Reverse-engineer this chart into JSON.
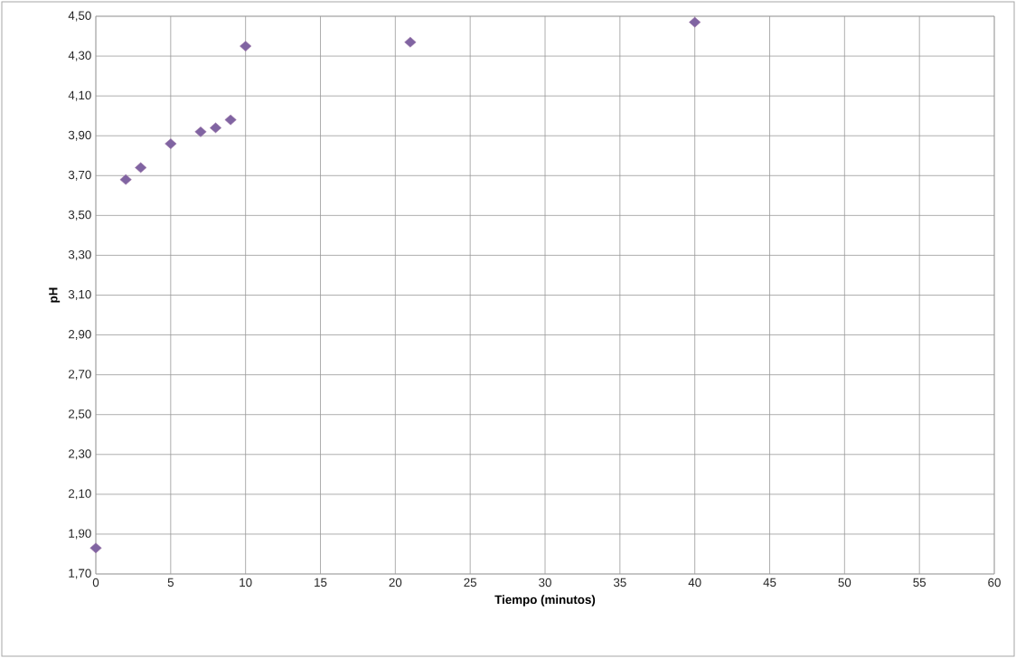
{
  "chart_data": {
    "type": "scatter",
    "xlabel": "Tiempo (minutos)",
    "ylabel": "pH",
    "x": [
      0,
      2,
      3,
      5,
      7,
      8,
      9,
      10,
      21,
      40
    ],
    "values": [
      1.83,
      3.68,
      3.74,
      3.86,
      3.92,
      3.94,
      3.98,
      4.35,
      4.37,
      4.47
    ],
    "color": "#8064a2",
    "marker": "diamond",
    "grid": true,
    "xlim": [
      0,
      60
    ],
    "xticks": [
      0,
      5,
      10,
      15,
      20,
      25,
      30,
      35,
      40,
      45,
      50,
      55,
      60
    ],
    "ylim": [
      1.7,
      4.5
    ],
    "yticks": [
      {
        "value": 1.7,
        "label": "1,70"
      },
      {
        "value": 1.9,
        "label": "1,90"
      },
      {
        "value": 2.1,
        "label": "2,10"
      },
      {
        "value": 2.3,
        "label": "2,30"
      },
      {
        "value": 2.5,
        "label": "2,50"
      },
      {
        "value": 2.7,
        "label": "2,70"
      },
      {
        "value": 2.9,
        "label": "2,90"
      },
      {
        "value": 3.1,
        "label": "3,10"
      },
      {
        "value": 3.3,
        "label": "3,30"
      },
      {
        "value": 3.5,
        "label": "3,50"
      },
      {
        "value": 3.7,
        "label": "3,70"
      },
      {
        "value": 3.9,
        "label": "3,90"
      },
      {
        "value": 4.1,
        "label": "4,10"
      },
      {
        "value": 4.3,
        "label": "4,30"
      },
      {
        "value": 4.5,
        "label": "4,50"
      }
    ]
  }
}
